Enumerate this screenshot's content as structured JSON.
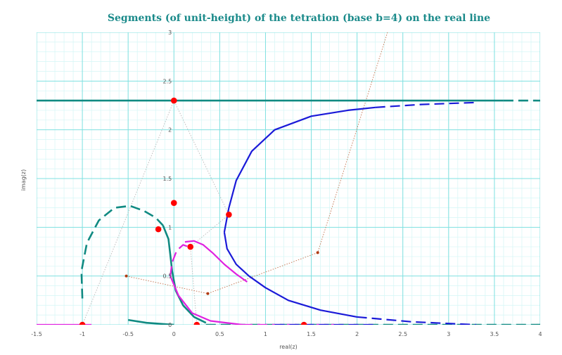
{
  "chart_data": {
    "type": "line",
    "title": "Segments (of unit-height) of the tetration (base b=4) on the real line",
    "xlabel": "real(z)",
    "ylabel": "imag(z)",
    "xlim": [
      -1.5,
      4
    ],
    "ylim": [
      0,
      3
    ],
    "x_ticks": [
      "-1.5",
      "-1",
      "-0.5",
      "0",
      "0.5",
      "1",
      "1.5",
      "2",
      "2.5",
      "3",
      "3.5",
      "4"
    ],
    "y_ticks": [
      "0",
      "0.5",
      "1",
      "1.5",
      "2",
      "2.5",
      "3"
    ],
    "grid": true,
    "colors": {
      "grid_major": "#7fe0e0",
      "grid_minor": "#d4f6f6",
      "teal": "#108a82",
      "blue": "#1a1ad8",
      "magenta": "#e020e0",
      "points": "#ff0000",
      "small_points": "#b03a10",
      "path_brown": "#c0704a",
      "path_gray": "#b8b8b8",
      "title": "#1a8a8a"
    },
    "series": [
      {
        "color": "teal",
        "style": "solid",
        "points": [
          [
            -1.5,
            2.3
          ],
          [
            3.6,
            2.3
          ]
        ]
      },
      {
        "color": "teal",
        "style": "dashed",
        "points": [
          [
            3.6,
            2.3
          ],
          [
            4.2,
            2.3
          ]
        ]
      },
      {
        "color": "magenta",
        "style": "solid",
        "points": [
          [
            -1.5,
            0
          ],
          [
            -0.9,
            0
          ]
        ]
      },
      {
        "color": "teal",
        "style": "solid",
        "points": [
          [
            -0.5,
            0.05
          ],
          [
            -0.3,
            0.02
          ],
          [
            0,
            0
          ]
        ]
      },
      {
        "color": "teal",
        "style": "dashed",
        "points": [
          [
            -1.0,
            0.27
          ],
          [
            -1.01,
            0.55
          ],
          [
            -0.95,
            0.84
          ],
          [
            -0.82,
            1.07
          ],
          [
            -0.65,
            1.2
          ],
          [
            -0.48,
            1.22
          ],
          [
            -0.33,
            1.17
          ],
          [
            -0.2,
            1.1
          ],
          [
            -0.12,
            1.02
          ]
        ]
      },
      {
        "color": "teal",
        "style": "solid",
        "points": [
          [
            -0.12,
            1.02
          ],
          [
            -0.06,
            0.88
          ],
          [
            -0.04,
            0.72
          ],
          [
            -0.02,
            0.55
          ],
          [
            0.02,
            0.35
          ],
          [
            0.1,
            0.2
          ],
          [
            0.22,
            0.08
          ],
          [
            0.35,
            0.02
          ]
        ]
      },
      {
        "color": "teal",
        "style": "dashed",
        "points": [
          [
            0.35,
            0.0
          ],
          [
            4.2,
            0.0
          ]
        ]
      },
      {
        "color": "magenta",
        "style": "solid",
        "points": [
          [
            0.12,
            0.85
          ],
          [
            0.22,
            0.86
          ],
          [
            0.32,
            0.82
          ],
          [
            0.42,
            0.74
          ],
          [
            0.55,
            0.62
          ],
          [
            0.68,
            0.52
          ],
          [
            0.8,
            0.44
          ]
        ]
      },
      {
        "color": "magenta",
        "style": "dashed",
        "points": [
          [
            -0.04,
            0.5
          ],
          [
            -0.02,
            0.64
          ],
          [
            0.03,
            0.76
          ],
          [
            0.1,
            0.82
          ],
          [
            0.16,
            0.8
          ]
        ]
      },
      {
        "color": "magenta",
        "style": "solid",
        "points": [
          [
            -0.04,
            0.5
          ],
          [
            0.05,
            0.3
          ],
          [
            0.2,
            0.12
          ],
          [
            0.4,
            0.04
          ],
          [
            0.75,
            0
          ]
        ]
      },
      {
        "color": "magenta",
        "style": "dashed",
        "points": [
          [
            0.75,
            0
          ],
          [
            1.75,
            0
          ]
        ]
      },
      {
        "color": "blue",
        "style": "solid",
        "points": [
          [
            0.55,
            0.95
          ],
          [
            0.6,
            1.2
          ],
          [
            0.68,
            1.48
          ],
          [
            0.85,
            1.78
          ],
          [
            1.1,
            2.0
          ],
          [
            1.5,
            2.14
          ],
          [
            1.9,
            2.2
          ],
          [
            2.2,
            2.23
          ]
        ]
      },
      {
        "color": "blue",
        "style": "dashed",
        "points": [
          [
            2.2,
            2.23
          ],
          [
            2.7,
            2.26
          ],
          [
            3.3,
            2.28
          ]
        ]
      },
      {
        "color": "blue",
        "style": "solid",
        "points": [
          [
            0.55,
            0.95
          ],
          [
            0.58,
            0.78
          ],
          [
            0.68,
            0.62
          ],
          [
            0.82,
            0.5
          ],
          [
            1.0,
            0.38
          ],
          [
            1.25,
            0.25
          ],
          [
            1.6,
            0.15
          ],
          [
            2.0,
            0.08
          ]
        ]
      },
      {
        "color": "blue",
        "style": "dashed",
        "points": [
          [
            2.0,
            0.08
          ],
          [
            2.6,
            0.03
          ],
          [
            3.3,
            0.0
          ]
        ]
      },
      {
        "color": "blue",
        "style": "dashed",
        "points": [
          [
            1.1,
            0
          ],
          [
            2.2,
            0
          ]
        ]
      }
    ],
    "large_points": [
      [
        -1,
        0
      ],
      [
        0,
        2.3
      ],
      [
        0,
        1.25
      ],
      [
        -0.17,
        0.98
      ],
      [
        0.6,
        1.13
      ],
      [
        0.18,
        0.8
      ],
      [
        0.25,
        0
      ],
      [
        1.42,
        0
      ]
    ],
    "small_points": [
      [
        -0.52,
        0.5
      ],
      [
        0.37,
        0.32
      ],
      [
        1.57,
        0.74
      ]
    ],
    "brown_path": [
      [
        -0.52,
        0.5
      ],
      [
        0.37,
        0.32
      ],
      [
        1.57,
        0.74
      ],
      [
        2.4,
        3.2
      ]
    ],
    "gray_path": [
      [
        -1,
        0
      ],
      [
        0,
        2.3
      ],
      [
        0.6,
        1.13
      ],
      [
        0.18,
        0.8
      ],
      [
        0.25,
        0
      ]
    ]
  }
}
